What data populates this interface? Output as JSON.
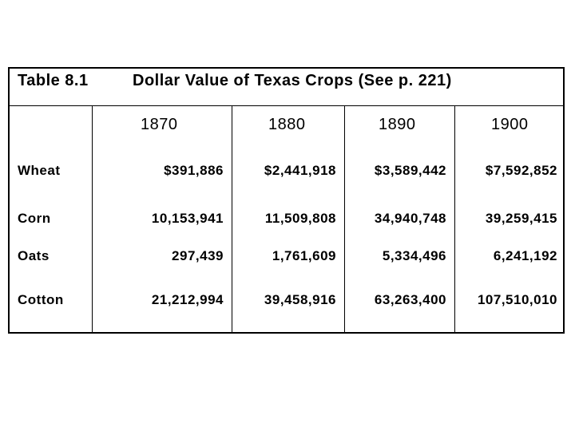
{
  "table": {
    "number": "Table 8.1",
    "title": "Dollar Value of Texas Crops (See p. 221)",
    "years": [
      "1870",
      "1880",
      "1890",
      "1900"
    ],
    "rows": [
      {
        "crop": "Wheat",
        "values": [
          "$391,886",
          "$2,441,918",
          "$3,589,442",
          "$7,592,852"
        ]
      },
      {
        "crop": "Corn",
        "values": [
          "10,153,941",
          "11,509,808",
          "34,940,748",
          "39,259,415"
        ]
      },
      {
        "crop": "Oats",
        "values": [
          "297,439",
          "1,761,609",
          "5,334,496",
          "6,241,192"
        ]
      },
      {
        "crop": "Cotton",
        "values": [
          "21,212,994",
          "39,458,916",
          "63,263,400",
          "107,510,010"
        ]
      }
    ]
  }
}
